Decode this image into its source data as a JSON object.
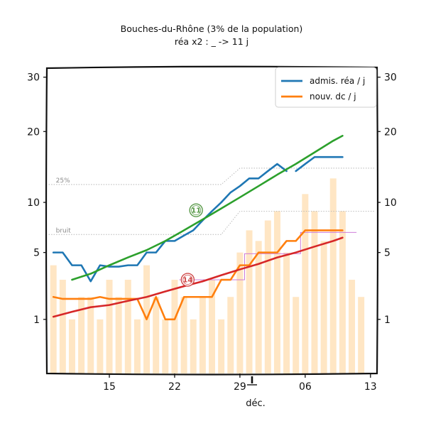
{
  "chart_data": {
    "type": "line",
    "title": "Bouches-du-Rhône (3% de la population)",
    "subtitle": "réa x2 : _ -> 11 j",
    "xlabel": "déc.",
    "ylabel": "",
    "x_ticks": [
      {
        "label": "15",
        "day": 15
      },
      {
        "label": "22",
        "day": 22
      },
      {
        "label": "29",
        "day": 29
      },
      {
        "label": "06",
        "day": 36
      },
      {
        "label": "13",
        "day": 43
      }
    ],
    "y_ticks": [
      1,
      5,
      10,
      20,
      30
    ],
    "y_scale": "sqrt",
    "ylim": [
      0,
      32
    ],
    "xlim": [
      8.3,
      43.7
    ],
    "grid": false,
    "legend_position": "top-right",
    "legend": [
      {
        "label": "admis. réa / j",
        "color": "#1f77b4"
      },
      {
        "label": "nouv. dc / j",
        "color": "#ff7f0e"
      }
    ],
    "reference_lines": [
      {
        "label": "25%",
        "points": [
          [
            8.5,
            12.2
          ],
          [
            27,
            12.2
          ],
          [
            29,
            14.4
          ],
          [
            43.5,
            14.4
          ]
        ]
      },
      {
        "label": "bruit",
        "points": [
          [
            8.5,
            6.6
          ],
          [
            27,
            6.6
          ],
          [
            29,
            9.0
          ],
          [
            43.5,
            9.0
          ]
        ]
      }
    ],
    "threshold_line": {
      "color": "#c86bd4",
      "points": [
        [
          22.5,
          3.0
        ],
        [
          29.5,
          3.0
        ],
        [
          29.5,
          4.9
        ],
        [
          35.5,
          4.9
        ],
        [
          35.5,
          6.8
        ],
        [
          41.5,
          6.8
        ]
      ]
    },
    "bars": {
      "color": "#ffe6c4",
      "days": [
        9,
        10,
        11,
        12,
        13,
        14,
        15,
        16,
        17,
        18,
        19,
        20,
        21,
        22,
        23,
        24,
        25,
        26,
        27,
        28,
        29,
        30,
        31,
        32,
        33,
        34,
        35,
        36,
        37,
        38,
        39,
        40,
        41,
        42
      ],
      "values": [
        4,
        3,
        1,
        2,
        2,
        1,
        3,
        2,
        3,
        1,
        4,
        2,
        1,
        3,
        2,
        1,
        2,
        3,
        1,
        2,
        5,
        7,
        6,
        8,
        9,
        5,
        2,
        11,
        9,
        6,
        13,
        9,
        3,
        2
      ]
    },
    "series": [
      {
        "name": "admis. réa / j",
        "color": "#1f77b4",
        "x": [
          9,
          10,
          11,
          12,
          13,
          14,
          15,
          16,
          17,
          18,
          19,
          20,
          21,
          22,
          23,
          24,
          25,
          26,
          27,
          28,
          29,
          30,
          31,
          32,
          33,
          34,
          35,
          36,
          37,
          38,
          39,
          40
        ],
        "values": [
          5.0,
          5.0,
          4.0,
          4.0,
          2.9,
          4.0,
          3.9,
          3.9,
          4.0,
          4.0,
          5.0,
          5.0,
          6.0,
          6.0,
          6.5,
          7.0,
          8.0,
          9.0,
          10.0,
          11.2,
          12.0,
          13.0,
          13.0,
          14.0,
          15.0,
          14.0,
          14.0,
          15.0,
          16.0,
          16.0,
          16.0,
          16.0
        ],
        "segments": [
          [
            9,
            34
          ],
          [
            35,
            40
          ]
        ]
      },
      {
        "name": "nouv. dc / j",
        "color": "#ff7f0e",
        "x": [
          9,
          10,
          11,
          12,
          13,
          14,
          15,
          16,
          17,
          18,
          19,
          20,
          21,
          22,
          23,
          24,
          25,
          26,
          27,
          28,
          29,
          30,
          31,
          32,
          33,
          34,
          35,
          36,
          37,
          38,
          39,
          40
        ],
        "values": [
          2.0,
          1.9,
          1.9,
          1.9,
          1.9,
          2.0,
          1.9,
          1.9,
          1.9,
          1.9,
          1.0,
          2.0,
          1.0,
          1.0,
          2.0,
          2.0,
          2.0,
          2.0,
          3.0,
          3.0,
          4.0,
          4.0,
          5.0,
          5.0,
          5.0,
          6.0,
          6.0,
          7.0,
          7.0,
          7.0,
          7.0,
          7.0
        ]
      },
      {
        "name": "",
        "color": "#2ca02c",
        "x": [
          11,
          13,
          15,
          17,
          19,
          21,
          23,
          25,
          27,
          29,
          31,
          33,
          35,
          37,
          39,
          40
        ],
        "values": [
          3.0,
          3.4,
          4.0,
          4.6,
          5.2,
          6.0,
          7.0,
          8.1,
          9.3,
          10.6,
          12.0,
          13.5,
          15.0,
          16.7,
          18.5,
          19.3
        ]
      },
      {
        "name": "",
        "color": "#d62728",
        "x": [
          9,
          11,
          13,
          15,
          17,
          19,
          21,
          23,
          25,
          27,
          29,
          31,
          33,
          35,
          37,
          39,
          40
        ],
        "values": [
          1.1,
          1.3,
          1.5,
          1.6,
          1.8,
          2.0,
          2.3,
          2.6,
          2.9,
          3.3,
          3.7,
          4.1,
          4.6,
          5.0,
          5.5,
          6.0,
          6.3
        ]
      }
    ],
    "annotations": [
      {
        "text": "11",
        "x": 24.3,
        "y": 9.1,
        "color": "#5a9a4a"
      },
      {
        "text": "14",
        "x": 23.4,
        "y": 3.0,
        "color": "#d04a4a"
      }
    ],
    "marker": {
      "day": 30.3
    }
  }
}
